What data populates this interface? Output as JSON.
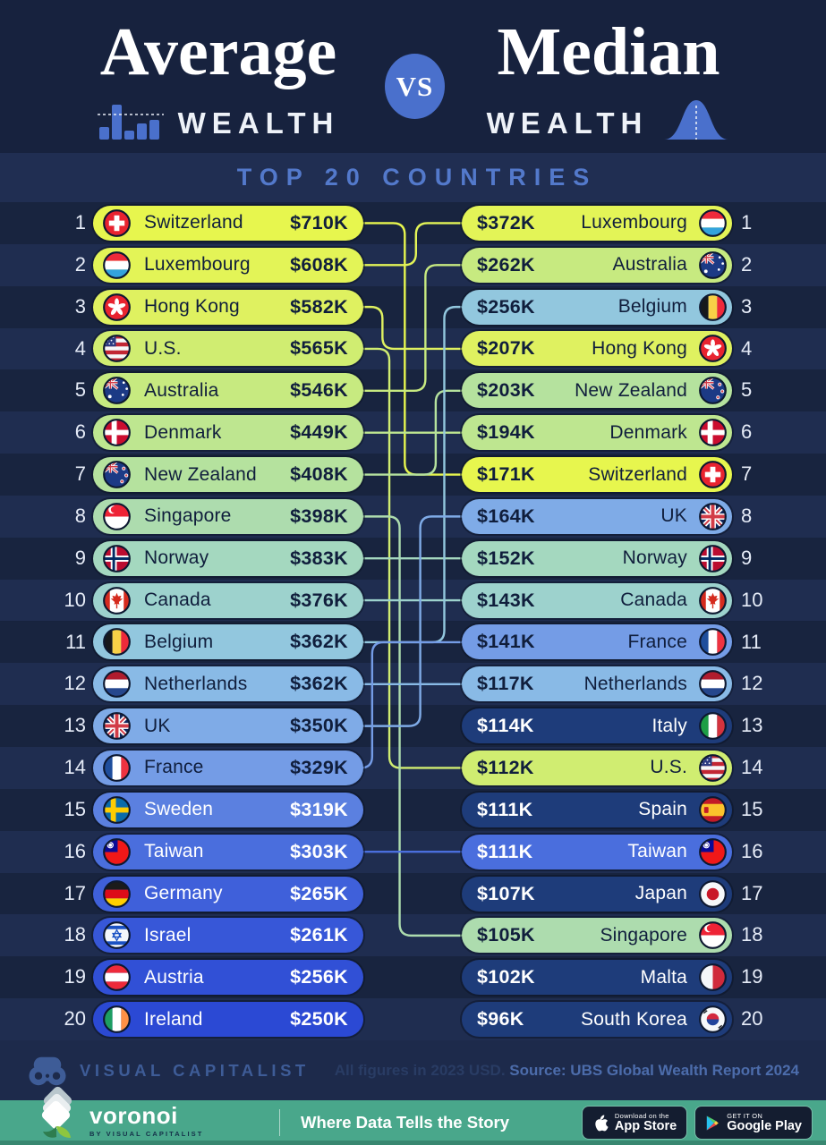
{
  "header": {
    "title_left": "Average",
    "wealth_left": "WEALTH",
    "vs": "VS",
    "title_right": "Median",
    "wealth_right": "WEALTH",
    "band_label": "TOP 20 COUNTRIES"
  },
  "left_rows": [
    {
      "rank": 1,
      "country": "Switzerland",
      "value": "$710K",
      "flag": "ch",
      "bg": "#e7f64e",
      "fg": "dark"
    },
    {
      "rank": 2,
      "country": "Luxembourg",
      "value": "$608K",
      "flag": "lu",
      "bg": "#e3f457",
      "fg": "dark"
    },
    {
      "rank": 3,
      "country": "Hong Kong",
      "value": "$582K",
      "flag": "hk",
      "bg": "#dff160",
      "fg": "dark"
    },
    {
      "rank": 4,
      "country": "U.S.",
      "value": "$565K",
      "flag": "us",
      "bg": "#d0ed71",
      "fg": "dark"
    },
    {
      "rank": 5,
      "country": "Australia",
      "value": "$546K",
      "flag": "au",
      "bg": "#c7ea80",
      "fg": "dark"
    },
    {
      "rank": 6,
      "country": "Denmark",
      "value": "$449K",
      "flag": "dk",
      "bg": "#bee690",
      "fg": "dark"
    },
    {
      "rank": 7,
      "country": "New Zealand",
      "value": "$408K",
      "flag": "nz",
      "bg": "#b5e29e",
      "fg": "dark"
    },
    {
      "rank": 8,
      "country": "Singapore",
      "value": "$398K",
      "flag": "sg",
      "bg": "#addcae",
      "fg": "dark"
    },
    {
      "rank": 9,
      "country": "Norway",
      "value": "$383K",
      "flag": "no",
      "bg": "#a4d8bf",
      "fg": "dark"
    },
    {
      "rank": 10,
      "country": "Canada",
      "value": "$376K",
      "flag": "ca",
      "bg": "#9dd2cd",
      "fg": "dark"
    },
    {
      "rank": 11,
      "country": "Belgium",
      "value": "$362K",
      "flag": "be",
      "bg": "#92c7de",
      "fg": "dark"
    },
    {
      "rank": 12,
      "country": "Netherlands",
      "value": "$362K",
      "flag": "nl",
      "bg": "#89bae6",
      "fg": "dark"
    },
    {
      "rank": 13,
      "country": "UK",
      "value": "$350K",
      "flag": "uk",
      "bg": "#7fabe7",
      "fg": "dark"
    },
    {
      "rank": 14,
      "country": "France",
      "value": "$329K",
      "flag": "fr",
      "bg": "#749ce6",
      "fg": "dark"
    },
    {
      "rank": 15,
      "country": "Sweden",
      "value": "$319K",
      "flag": "se",
      "bg": "#5b80e0",
      "fg": "light"
    },
    {
      "rank": 16,
      "country": "Taiwan",
      "value": "$303K",
      "flag": "tw",
      "bg": "#4a6edd",
      "fg": "light"
    },
    {
      "rank": 17,
      "country": "Germany",
      "value": "$265K",
      "flag": "de",
      "bg": "#3f60da",
      "fg": "light"
    },
    {
      "rank": 18,
      "country": "Israel",
      "value": "$261K",
      "flag": "il",
      "bg": "#3757d8",
      "fg": "light"
    },
    {
      "rank": 19,
      "country": "Austria",
      "value": "$256K",
      "flag": "at",
      "bg": "#3150d6",
      "fg": "light"
    },
    {
      "rank": 20,
      "country": "Ireland",
      "value": "$250K",
      "flag": "ie",
      "bg": "#2b49d4",
      "fg": "light"
    }
  ],
  "right_rows": [
    {
      "rank": 1,
      "country": "Luxembourg",
      "value": "$372K",
      "flag": "lu",
      "bg": "#e3f457",
      "fg": "dark"
    },
    {
      "rank": 2,
      "country": "Australia",
      "value": "$262K",
      "flag": "au",
      "bg": "#c7ea80",
      "fg": "dark"
    },
    {
      "rank": 3,
      "country": "Belgium",
      "value": "$256K",
      "flag": "be",
      "bg": "#92c7de",
      "fg": "dark"
    },
    {
      "rank": 4,
      "country": "Hong Kong",
      "value": "$207K",
      "flag": "hk",
      "bg": "#dff160",
      "fg": "dark"
    },
    {
      "rank": 5,
      "country": "New Zealand",
      "value": "$203K",
      "flag": "nz",
      "bg": "#b5e29e",
      "fg": "dark"
    },
    {
      "rank": 6,
      "country": "Denmark",
      "value": "$194K",
      "flag": "dk",
      "bg": "#bee690",
      "fg": "dark"
    },
    {
      "rank": 7,
      "country": "Switzerland",
      "value": "$171K",
      "flag": "ch",
      "bg": "#e7f64e",
      "fg": "dark"
    },
    {
      "rank": 8,
      "country": "UK",
      "value": "$164K",
      "flag": "uk",
      "bg": "#7fabe7",
      "fg": "dark"
    },
    {
      "rank": 9,
      "country": "Norway",
      "value": "$152K",
      "flag": "no",
      "bg": "#a4d8bf",
      "fg": "dark"
    },
    {
      "rank": 10,
      "country": "Canada",
      "value": "$143K",
      "flag": "ca",
      "bg": "#9dd2cd",
      "fg": "dark"
    },
    {
      "rank": 11,
      "country": "France",
      "value": "$141K",
      "flag": "fr",
      "bg": "#749ce6",
      "fg": "dark"
    },
    {
      "rank": 12,
      "country": "Netherlands",
      "value": "$117K",
      "flag": "nl",
      "bg": "#89bae6",
      "fg": "dark"
    },
    {
      "rank": 13,
      "country": "Italy",
      "value": "$114K",
      "flag": "it",
      "bg": "#1e3c7a",
      "fg": "light"
    },
    {
      "rank": 14,
      "country": "U.S.",
      "value": "$112K",
      "flag": "us",
      "bg": "#d0ed71",
      "fg": "dark"
    },
    {
      "rank": 15,
      "country": "Spain",
      "value": "$111K",
      "flag": "es",
      "bg": "#1e3c7a",
      "fg": "light"
    },
    {
      "rank": 16,
      "country": "Taiwan",
      "value": "$111K",
      "flag": "tw",
      "bg": "#4a6edd",
      "fg": "light"
    },
    {
      "rank": 17,
      "country": "Japan",
      "value": "$107K",
      "flag": "jp",
      "bg": "#1e3c7a",
      "fg": "light"
    },
    {
      "rank": 18,
      "country": "Singapore",
      "value": "$105K",
      "flag": "sg",
      "bg": "#addcae",
      "fg": "dark"
    },
    {
      "rank": 19,
      "country": "Malta",
      "value": "$102K",
      "flag": "mt",
      "bg": "#1e3c7a",
      "fg": "light"
    },
    {
      "rank": 20,
      "country": "South Korea",
      "value": "$96K",
      "flag": "kr",
      "bg": "#1e3c7a",
      "fg": "light"
    }
  ],
  "connections": [
    {
      "country": "Switzerland",
      "from": 1,
      "to": 7,
      "lane": 0.42
    },
    {
      "country": "Luxembourg",
      "from": 2,
      "to": 1,
      "lane": 0.55
    },
    {
      "country": "Hong Kong",
      "from": 3,
      "to": 4,
      "lane": 0.16
    },
    {
      "country": "U.S.",
      "from": 4,
      "to": 14,
      "lane": 0.24
    },
    {
      "country": "Australia",
      "from": 5,
      "to": 2,
      "lane": 0.66
    },
    {
      "country": "Denmark",
      "from": 6,
      "to": 6,
      "lane": null
    },
    {
      "country": "New Zealand",
      "from": 7,
      "to": 5,
      "lane": 0.78
    },
    {
      "country": "Singapore",
      "from": 8,
      "to": 18,
      "lane": 0.36
    },
    {
      "country": "Norway",
      "from": 9,
      "to": 9,
      "lane": null
    },
    {
      "country": "Canada",
      "from": 10,
      "to": 10,
      "lane": null
    },
    {
      "country": "Belgium",
      "from": 11,
      "to": 3,
      "lane": 0.88
    },
    {
      "country": "Netherlands",
      "from": 12,
      "to": 12,
      "lane": null
    },
    {
      "country": "UK",
      "from": 13,
      "to": 8,
      "lane": 0.6
    },
    {
      "country": "France",
      "from": 14,
      "to": 11,
      "lane": 0.04
    },
    {
      "country": "Taiwan",
      "from": 16,
      "to": 16,
      "lane": null
    }
  ],
  "footer": {
    "brand": "VISUAL CAPITALIST",
    "note": "All figures in 2023 USD.",
    "source": "Source: UBS Global Wealth Report 2024"
  },
  "bottombar": {
    "brand": "voronoi",
    "brand_sub": "BY VISUAL CAPITALIST",
    "tagline": "Where Data Tells the Story",
    "appstore_line1": "Download on the",
    "appstore_line2": "App Store",
    "gplay_line1": "GET IT ON",
    "gplay_line2": "Google Play"
  },
  "chart_data": {
    "type": "table",
    "title": "Average vs Median Wealth",
    "subtitle": "Top 20 Countries",
    "unit": "2023 USD (thousands)",
    "source": "UBS Global Wealth Report 2024",
    "series": [
      {
        "name": "Average Wealth",
        "categories": [
          "Switzerland",
          "Luxembourg",
          "Hong Kong",
          "U.S.",
          "Australia",
          "Denmark",
          "New Zealand",
          "Singapore",
          "Norway",
          "Canada",
          "Belgium",
          "Netherlands",
          "UK",
          "France",
          "Sweden",
          "Taiwan",
          "Germany",
          "Israel",
          "Austria",
          "Ireland"
        ],
        "values_usd_k": [
          710,
          608,
          582,
          565,
          546,
          449,
          408,
          398,
          383,
          376,
          362,
          362,
          350,
          329,
          319,
          303,
          265,
          261,
          256,
          250
        ]
      },
      {
        "name": "Median Wealth",
        "categories": [
          "Luxembourg",
          "Australia",
          "Belgium",
          "Hong Kong",
          "New Zealand",
          "Denmark",
          "Switzerland",
          "UK",
          "Norway",
          "Canada",
          "France",
          "Netherlands",
          "Italy",
          "U.S.",
          "Spain",
          "Taiwan",
          "Japan",
          "Singapore",
          "Malta",
          "South Korea"
        ],
        "values_usd_k": [
          372,
          262,
          256,
          207,
          203,
          194,
          171,
          164,
          152,
          143,
          141,
          117,
          114,
          112,
          111,
          111,
          107,
          105,
          102,
          96
        ]
      }
    ]
  }
}
